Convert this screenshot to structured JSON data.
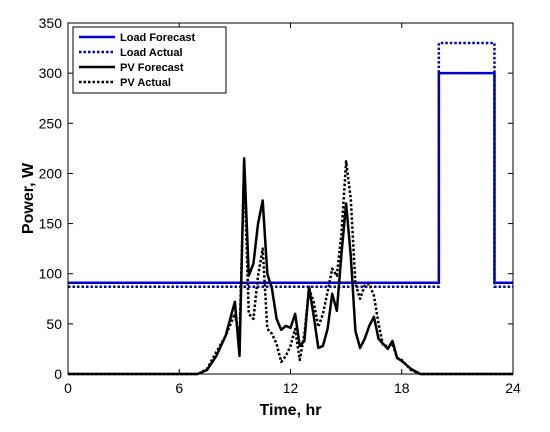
{
  "chart_data": {
    "type": "line",
    "title": "",
    "xlabel": "Time, hr",
    "ylabel": "Power, W",
    "xlim": [
      0,
      24
    ],
    "ylim": [
      0,
      350
    ],
    "xticks": [
      "0",
      "6",
      "12",
      "18",
      "24"
    ],
    "yticks": [
      "0",
      "50",
      "100",
      "150",
      "200",
      "250",
      "300",
      "350"
    ],
    "grid": false,
    "legend": "top-left",
    "series": [
      {
        "name": "Load Forecast",
        "color": "#0000cc",
        "style": "solid",
        "x": [
          0,
          20,
          20,
          23,
          23,
          24
        ],
        "y": [
          91,
          91,
          300,
          300,
          91,
          91
        ]
      },
      {
        "name": "Load Actual",
        "color": "#0000cc",
        "style": "dotted",
        "x": [
          0,
          20,
          20,
          23,
          23,
          24
        ],
        "y": [
          87,
          87,
          330,
          330,
          87,
          87
        ]
      },
      {
        "name": "PV Forecast",
        "color": "#000000",
        "style": "solid",
        "x": [
          0,
          7,
          7.5,
          8,
          8.5,
          9,
          9.25,
          9.5,
          9.75,
          10,
          10.25,
          10.5,
          10.75,
          11,
          11.25,
          11.5,
          11.75,
          12,
          12.25,
          12.5,
          12.75,
          13,
          13.25,
          13.5,
          13.75,
          14,
          14.25,
          14.5,
          14.75,
          15,
          15.25,
          15.5,
          15.75,
          16,
          16.25,
          16.5,
          16.75,
          17,
          17.25,
          17.5,
          17.75,
          18,
          18.5,
          19,
          24
        ],
        "y": [
          0,
          0,
          4,
          18,
          38,
          72,
          18,
          215,
          98,
          110,
          150,
          173,
          100,
          85,
          55,
          44,
          48,
          46,
          60,
          28,
          33,
          87,
          58,
          26,
          28,
          45,
          80,
          63,
          120,
          170,
          118,
          43,
          26,
          35,
          48,
          57,
          35,
          30,
          25,
          33,
          16,
          13,
          5,
          0,
          0
        ]
      },
      {
        "name": "PV Actual",
        "color": "#000000",
        "style": "dotted",
        "x": [
          0,
          7,
          7.5,
          8,
          8.5,
          9,
          9.25,
          9.5,
          9.75,
          10,
          10.25,
          10.5,
          10.75,
          11,
          11.25,
          11.5,
          11.75,
          12,
          12.25,
          12.5,
          12.75,
          13,
          13.25,
          13.5,
          13.75,
          14,
          14.25,
          14.5,
          14.75,
          15,
          15.25,
          15.5,
          15.75,
          16,
          16.25,
          16.5,
          16.75,
          17,
          17.25,
          17.5,
          17.75,
          18,
          18.5,
          19,
          24
        ],
        "y": [
          0,
          0,
          5,
          22,
          38,
          60,
          35,
          205,
          60,
          55,
          98,
          125,
          45,
          40,
          30,
          12,
          18,
          28,
          45,
          14,
          40,
          85,
          72,
          47,
          60,
          82,
          105,
          98,
          140,
          212,
          175,
          90,
          75,
          88,
          90,
          78,
          50,
          28,
          28,
          30,
          16,
          14,
          4,
          0,
          0
        ]
      }
    ]
  }
}
